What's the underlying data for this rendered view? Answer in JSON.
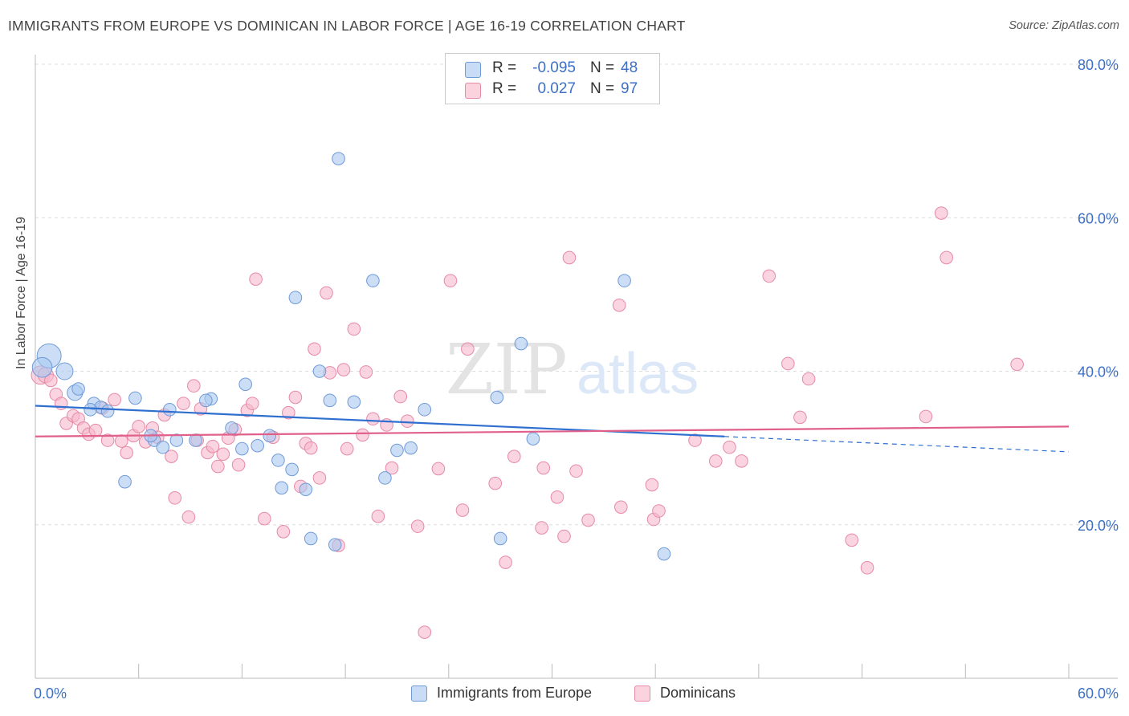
{
  "header": {
    "title": "IMMIGRANTS FROM EUROPE VS DOMINICAN IN LABOR FORCE | AGE 16-19 CORRELATION CHART",
    "source": "Source: ZipAtlas.com"
  },
  "watermark": {
    "zip": "ZIP",
    "atlas": "atlas"
  },
  "legend_top": {
    "rows": [
      {
        "r_label": "R =",
        "r_value": "-0.095",
        "n_label": "N =",
        "n_value": "48",
        "color": "#a9c8f0"
      },
      {
        "r_label": "R =",
        "r_value": "0.027",
        "n_label": "N =",
        "n_value": "97",
        "color": "#f7b8cb"
      }
    ]
  },
  "legend_bottom": {
    "items": [
      {
        "label": "Immigrants from Europe",
        "color": "#a9c8f0"
      },
      {
        "label": "Dominicans",
        "color": "#f7b8cb"
      }
    ]
  },
  "colors": {
    "blue_fill": "#a9c8f0",
    "blue_stroke": "#6f9ad8",
    "blue_line": "#2f6fd0",
    "pink_fill": "#f7b8cb",
    "pink_stroke": "#e68aa6",
    "pink_line": "#e0608a",
    "tick_label": "#3d6fc4",
    "grid": "#dddddd"
  },
  "chart_data": {
    "type": "scatter",
    "title": "IMMIGRANTS FROM EUROPE VS DOMINICAN IN LABOR FORCE | AGE 16-19 CORRELATION CHART",
    "xlabel": "",
    "ylabel": "In Labor Force | Age 16-19",
    "xlim": [
      0,
      60
    ],
    "ylim": [
      0,
      80
    ],
    "x_tick_labels": [
      "0.0%",
      "60.0%"
    ],
    "y_ticks": [
      20,
      40,
      60,
      80
    ],
    "y_tick_labels": [
      "20.0%",
      "40.0%",
      "60.0%",
      "80.0%"
    ],
    "grid": true,
    "legend_placement": "top-center",
    "series": [
      {
        "name": "Immigrants from Europe",
        "r": -0.095,
        "n": 48,
        "trend": {
          "x0": 0,
          "y0": 35.5,
          "x1": 40.0,
          "y1": 31.5,
          "dashed_to_x": 60,
          "dashed_to_y": 29.5
        },
        "points": [
          [
            0.8,
            42.0,
            3
          ],
          [
            0.4,
            40.5,
            2.4
          ],
          [
            1.7,
            40.0,
            2
          ],
          [
            2.3,
            37.2,
            1.8
          ],
          [
            2.5,
            37.7,
            1.4
          ],
          [
            3.4,
            35.8,
            1.4
          ],
          [
            3.8,
            35.3,
            1.4
          ],
          [
            3.2,
            35.0,
            1.4
          ],
          [
            4.2,
            34.8,
            1.4
          ],
          [
            5.8,
            36.5,
            1.4
          ],
          [
            7.8,
            35.0,
            1.4
          ],
          [
            6.9,
            31.0,
            1.4
          ],
          [
            6.7,
            31.6,
            1.4
          ],
          [
            7.4,
            30.1,
            1.4
          ],
          [
            8.2,
            31.0,
            1.4
          ],
          [
            9.3,
            31.0,
            1.4
          ],
          [
            10.2,
            36.4,
            1.4
          ],
          [
            9.9,
            36.2,
            1.4
          ],
          [
            11.4,
            32.6,
            1.4
          ],
          [
            12.0,
            29.9,
            1.4
          ],
          [
            12.2,
            38.3,
            1.4
          ],
          [
            12.9,
            30.3,
            1.4
          ],
          [
            13.6,
            31.6,
            1.4
          ],
          [
            14.1,
            28.4,
            1.4
          ],
          [
            14.9,
            27.2,
            1.4
          ],
          [
            15.1,
            49.6,
            1.4
          ],
          [
            14.3,
            24.8,
            1.4
          ],
          [
            15.7,
            24.6,
            1.4
          ],
          [
            16.0,
            18.2,
            1.4
          ],
          [
            16.5,
            40.0,
            1.4
          ],
          [
            17.1,
            36.2,
            1.4
          ],
          [
            17.4,
            17.4,
            1.4
          ],
          [
            17.6,
            67.7,
            1.4
          ],
          [
            18.5,
            36.0,
            1.4
          ],
          [
            19.6,
            51.8,
            1.4
          ],
          [
            20.3,
            26.1,
            1.4
          ],
          [
            21.0,
            29.7,
            1.4
          ],
          [
            21.8,
            30.0,
            1.4
          ],
          [
            22.6,
            35.0,
            1.4
          ],
          [
            5.2,
            25.6,
            1.4
          ],
          [
            26.8,
            36.6,
            1.4
          ],
          [
            28.2,
            43.6,
            1.4
          ],
          [
            27.0,
            18.2,
            1.4
          ],
          [
            28.9,
            31.2,
            1.4
          ],
          [
            34.2,
            51.8,
            1.4
          ],
          [
            36.5,
            16.2,
            1.4
          ]
        ]
      },
      {
        "name": "Dominicans",
        "r": 0.027,
        "n": 97,
        "trend": {
          "x0": 0,
          "y0": 31.5,
          "x1": 60,
          "y1": 32.8
        },
        "points": [
          [
            0.3,
            39.5,
            2.2
          ],
          [
            0.6,
            39.5,
            1.8
          ],
          [
            0.9,
            38.8,
            1.4
          ],
          [
            1.2,
            37.0,
            1.4
          ],
          [
            1.5,
            35.8,
            1.4
          ],
          [
            1.8,
            33.2,
            1.4
          ],
          [
            2.2,
            34.2,
            1.4
          ],
          [
            2.5,
            33.8,
            1.4
          ],
          [
            2.8,
            32.6,
            1.4
          ],
          [
            3.1,
            31.8,
            1.4
          ],
          [
            3.5,
            32.3,
            1.4
          ],
          [
            3.9,
            35.2,
            1.4
          ],
          [
            4.2,
            31.0,
            1.4
          ],
          [
            4.6,
            36.3,
            1.4
          ],
          [
            5.0,
            30.9,
            1.4
          ],
          [
            5.3,
            29.4,
            1.4
          ],
          [
            5.7,
            31.6,
            1.4
          ],
          [
            6.0,
            32.8,
            1.4
          ],
          [
            6.4,
            30.8,
            1.4
          ],
          [
            6.8,
            32.6,
            1.4
          ],
          [
            7.1,
            31.4,
            1.4
          ],
          [
            7.5,
            34.3,
            1.4
          ],
          [
            7.9,
            28.9,
            1.4
          ],
          [
            8.1,
            23.5,
            1.4
          ],
          [
            8.6,
            35.8,
            1.4
          ],
          [
            8.9,
            21.0,
            1.4
          ],
          [
            9.2,
            38.1,
            1.4
          ],
          [
            9.4,
            31.0,
            1.4
          ],
          [
            9.6,
            35.1,
            1.4
          ],
          [
            10.0,
            29.4,
            1.4
          ],
          [
            10.3,
            30.2,
            1.4
          ],
          [
            10.6,
            27.6,
            1.4
          ],
          [
            10.9,
            29.2,
            1.4
          ],
          [
            11.2,
            31.3,
            1.4
          ],
          [
            11.6,
            32.4,
            1.4
          ],
          [
            11.8,
            27.8,
            1.4
          ],
          [
            12.3,
            34.9,
            1.4
          ],
          [
            12.6,
            35.8,
            1.4
          ],
          [
            12.8,
            52.0,
            1.4
          ],
          [
            13.3,
            20.8,
            1.4
          ],
          [
            13.8,
            31.4,
            1.4
          ],
          [
            14.4,
            19.1,
            1.4
          ],
          [
            14.7,
            34.6,
            1.4
          ],
          [
            15.1,
            36.6,
            1.4
          ],
          [
            15.4,
            25.0,
            1.4
          ],
          [
            15.7,
            30.6,
            1.4
          ],
          [
            16.0,
            30.0,
            1.4
          ],
          [
            16.2,
            42.9,
            1.4
          ],
          [
            16.5,
            26.1,
            1.4
          ],
          [
            16.9,
            50.2,
            1.4
          ],
          [
            17.1,
            39.8,
            1.4
          ],
          [
            17.6,
            17.3,
            1.4
          ],
          [
            17.9,
            40.2,
            1.4
          ],
          [
            18.1,
            29.9,
            1.4
          ],
          [
            18.5,
            45.5,
            1.4
          ],
          [
            19.0,
            31.7,
            1.4
          ],
          [
            19.2,
            39.9,
            1.4
          ],
          [
            19.6,
            33.8,
            1.4
          ],
          [
            19.9,
            21.1,
            1.4
          ],
          [
            20.4,
            33.0,
            1.4
          ],
          [
            20.7,
            27.4,
            1.4
          ],
          [
            21.2,
            36.7,
            1.4
          ],
          [
            21.6,
            33.5,
            1.4
          ],
          [
            22.2,
            19.8,
            1.4
          ],
          [
            22.6,
            6.0,
            1.4
          ],
          [
            23.4,
            27.3,
            1.4
          ],
          [
            24.1,
            51.8,
            1.4
          ],
          [
            24.8,
            21.9,
            1.4
          ],
          [
            25.1,
            42.9,
            1.4
          ],
          [
            26.7,
            25.4,
            1.4
          ],
          [
            27.3,
            15.1,
            1.4
          ],
          [
            27.8,
            28.9,
            1.4
          ],
          [
            29.4,
            19.6,
            1.4
          ],
          [
            29.5,
            27.4,
            1.4
          ],
          [
            30.3,
            23.6,
            1.4
          ],
          [
            30.7,
            18.5,
            1.4
          ],
          [
            31.0,
            54.8,
            1.4
          ],
          [
            31.4,
            27.0,
            1.4
          ],
          [
            32.1,
            20.6,
            1.4
          ],
          [
            33.9,
            48.6,
            1.4
          ],
          [
            34.0,
            22.3,
            1.4
          ],
          [
            35.8,
            25.2,
            1.4
          ],
          [
            35.9,
            20.7,
            1.4
          ],
          [
            36.2,
            21.8,
            1.4
          ],
          [
            38.3,
            31.0,
            1.4
          ],
          [
            39.5,
            28.3,
            1.4
          ],
          [
            40.3,
            30.1,
            1.4
          ],
          [
            41.0,
            28.3,
            1.4
          ],
          [
            42.6,
            52.4,
            1.4
          ],
          [
            43.7,
            41.0,
            1.4
          ],
          [
            44.4,
            34.0,
            1.4
          ],
          [
            44.9,
            39.0,
            1.4
          ],
          [
            47.4,
            18.0,
            1.4
          ],
          [
            48.3,
            14.4,
            1.4
          ],
          [
            51.7,
            34.1,
            1.4
          ],
          [
            52.6,
            60.6,
            1.4
          ],
          [
            52.9,
            54.8,
            1.4
          ],
          [
            57.0,
            40.9,
            1.4
          ]
        ]
      }
    ]
  }
}
